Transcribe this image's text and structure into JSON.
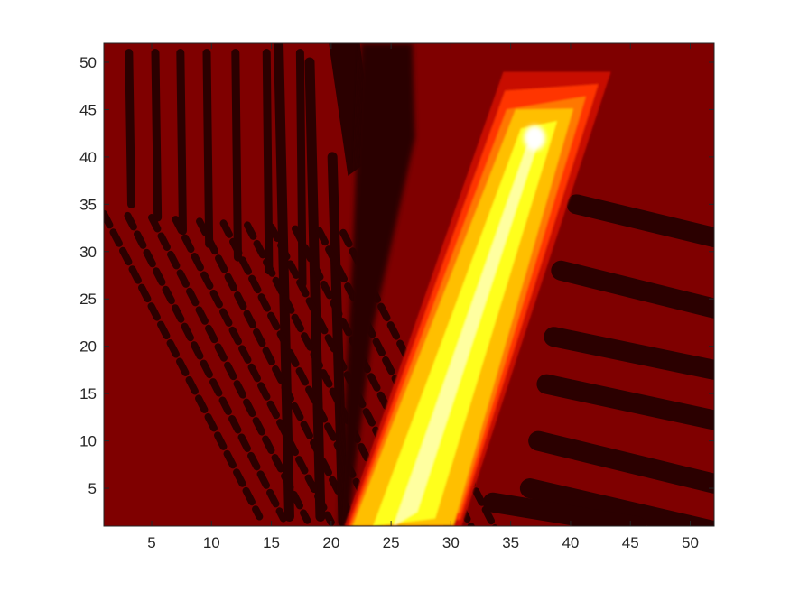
{
  "chart_data": {
    "type": "heatmap",
    "plot_style": "filled-contour",
    "colormap": "hot",
    "colors": {
      "level_0": "#2b0000",
      "level_1": "#7f0000",
      "level_2": "#c81000",
      "level_3": "#ff3600",
      "level_4": "#ff7800",
      "level_5": "#ffbf00",
      "level_6": "#ffff1c",
      "level_7": "#ffffa0",
      "level_8": "#ffffff"
    },
    "xlim": [
      1,
      52
    ],
    "ylim": [
      1,
      52
    ],
    "x_ticks": [
      "5",
      "10",
      "15",
      "20",
      "25",
      "30",
      "35",
      "40",
      "45",
      "50"
    ],
    "y_ticks": [
      "5",
      "10",
      "15",
      "20",
      "25",
      "30",
      "35",
      "40",
      "45",
      "50"
    ],
    "x_tick_values": [
      5,
      10,
      15,
      20,
      25,
      30,
      35,
      40,
      45,
      50
    ],
    "y_tick_values": [
      5,
      10,
      15,
      20,
      25,
      30,
      35,
      40,
      45,
      50
    ],
    "grid": false,
    "features": [
      {
        "name": "bright-beam",
        "description": "high-intensity band rising from x 21.5-30.5 at y=1 to a peak near x=37, y=42"
      },
      {
        "name": "peak",
        "x": 37,
        "y": 42
      },
      {
        "name": "left-stripes",
        "description": "dark near-vertical and diagonal interference stripes for x 1-22"
      },
      {
        "name": "right-stripes",
        "description": "dark inclined bars for x 31-52, y 1-35"
      }
    ]
  }
}
